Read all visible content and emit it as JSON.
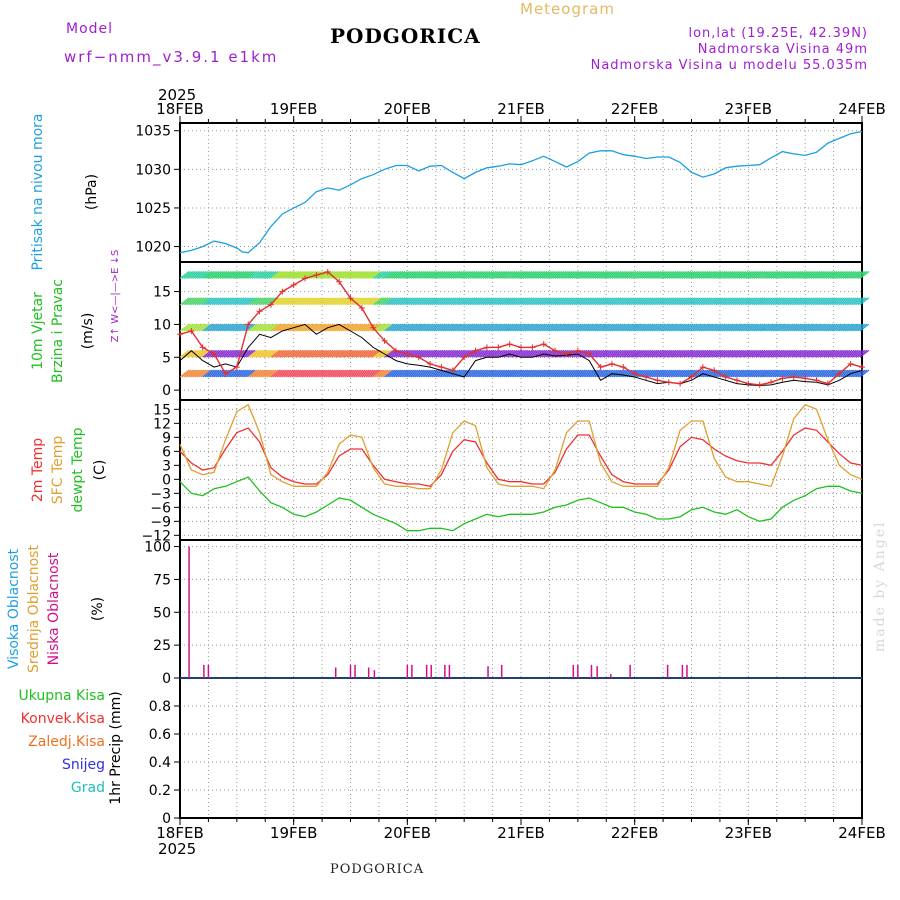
{
  "header": {
    "model_label": "Model",
    "model_value": "wrf−nmm_v3.9.1  e1km",
    "station": "PODGORICA",
    "title": "Meteogram",
    "lonlat": "lon,lat (19.25E, 42.39N)",
    "elevation": "Nadmorska Visina 49m",
    "model_elevation": "Nadmorska Visina u modelu 55.035m",
    "footer_station": "PODGORICA",
    "watermark": "made by Angel"
  },
  "colors": {
    "pressure": "#1aa0e0",
    "temp2m": "#f03030",
    "sfc_temp": "#e0a030",
    "dewpoint": "#20c020",
    "cloud_low": "#d0108a",
    "axis_title_pressure": "#20a0e0",
    "axis_title_wind": "#20c020",
    "compass": "#a020d0"
  },
  "chart_data": {
    "x_axis": {
      "top_year": "2025",
      "bottom_year": "2025",
      "ticks": [
        "18FEB",
        "19FEB",
        "20FEB",
        "21FEB",
        "22FEB",
        "23FEB",
        "24FEB"
      ],
      "range_days": [
        0,
        6
      ],
      "grid_step_hours": 6
    },
    "panels": [
      {
        "id": "pressure",
        "type": "line",
        "title": "Pritisak na nivou mora",
        "unit": "(hPa)",
        "ylim": [
          1018,
          1036
        ],
        "yticks": [
          1020,
          1025,
          1030,
          1035
        ],
        "series": [
          {
            "key": "pressure",
            "x": [
              0,
              0.1,
              0.2,
              0.3,
              0.4,
              0.5,
              0.55,
              0.6,
              0.7,
              0.8,
              0.9,
              1.0,
              1.1,
              1.2,
              1.3,
              1.4,
              1.5,
              1.6,
              1.7,
              1.8,
              1.9,
              2.0,
              2.1,
              2.2,
              2.3,
              2.4,
              2.5,
              2.6,
              2.7,
              2.8,
              2.9,
              3.0,
              3.1,
              3.2,
              3.3,
              3.4,
              3.5,
              3.6,
              3.7,
              3.8,
              3.9,
              4.0,
              4.1,
              4.2,
              4.3,
              4.4,
              4.5,
              4.6,
              4.7,
              4.8,
              4.9,
              5.0,
              5.1,
              5.2,
              5.3,
              5.4,
              5.5,
              5.6,
              5.7,
              5.8,
              5.9,
              6.0
            ],
            "values": [
              1019.2,
              1019.5,
              1020.0,
              1020.7,
              1020.4,
              1019.8,
              1019.3,
              1019.2,
              1020.5,
              1022.6,
              1024.2,
              1025.0,
              1025.7,
              1027.1,
              1027.6,
              1027.3,
              1028.0,
              1028.8,
              1029.3,
              1030.0,
              1030.5,
              1030.5,
              1029.8,
              1030.4,
              1030.5,
              1029.6,
              1028.8,
              1029.6,
              1030.2,
              1030.4,
              1030.7,
              1030.6,
              1031.1,
              1031.7,
              1031.0,
              1030.3,
              1031.0,
              1032.1,
              1032.4,
              1032.4,
              1031.9,
              1031.7,
              1031.4,
              1031.6,
              1031.6,
              1030.9,
              1029.6,
              1029.0,
              1029.4,
              1030.2,
              1030.4,
              1030.5,
              1030.6,
              1031.5,
              1032.3,
              1032.0,
              1031.8,
              1032.2,
              1033.4,
              1034.0,
              1034.6,
              1034.9
            ]
          }
        ]
      },
      {
        "id": "wind",
        "type": "line",
        "title_lines": [
          "10m Vjetar",
          "Brzina i Pravac"
        ],
        "unit": "(m/s)",
        "compass_label": "Z↑ W<—|—>E ↓S",
        "ylim": [
          -1.5,
          19.5
        ],
        "yticks": [
          0,
          5,
          10,
          15
        ],
        "series": [
          {
            "key": "mean_speed",
            "x": [
              0,
              0.1,
              0.2,
              0.3,
              0.4,
              0.5,
              0.6,
              0.7,
              0.8,
              0.9,
              1.0,
              1.1,
              1.2,
              1.3,
              1.4,
              1.5,
              1.6,
              1.7,
              1.8,
              1.9,
              2.0,
              2.1,
              2.2,
              2.3,
              2.4,
              2.5,
              2.6,
              2.7,
              2.8,
              2.9,
              3.0,
              3.1,
              3.2,
              3.3,
              3.4,
              3.5,
              3.6,
              3.7,
              3.8,
              3.9,
              4.0,
              4.1,
              4.2,
              4.3,
              4.4,
              4.5,
              4.6,
              4.7,
              4.8,
              4.9,
              5.0,
              5.1,
              5.2,
              5.3,
              5.4,
              5.5,
              5.6,
              5.7,
              5.8,
              5.9,
              6.0
            ],
            "values": [
              4.5,
              6.0,
              4.5,
              3.5,
              4.0,
              3.5,
              6.5,
              8.5,
              8.0,
              9.0,
              9.5,
              10.0,
              8.5,
              9.5,
              10.0,
              9.0,
              8.0,
              6.5,
              5.5,
              4.5,
              4.0,
              3.8,
              3.5,
              3.0,
              2.5,
              2.0,
              4.5,
              5.0,
              5.0,
              5.5,
              5.0,
              5.0,
              5.5,
              5.2,
              5.3,
              5.5,
              4.5,
              1.5,
              2.5,
              2.3,
              2.0,
              1.5,
              1.0,
              1.2,
              1.0,
              1.5,
              2.5,
              2.0,
              1.5,
              1.0,
              0.8,
              0.7,
              0.8,
              1.2,
              1.5,
              1.3,
              1.2,
              0.8,
              1.5,
              2.5,
              3.0
            ]
          },
          {
            "key": "gust_speed",
            "x": [
              0,
              0.1,
              0.2,
              0.3,
              0.4,
              0.5,
              0.6,
              0.7,
              0.8,
              0.9,
              1.0,
              1.1,
              1.2,
              1.3,
              1.4,
              1.5,
              1.6,
              1.7,
              1.8,
              1.9,
              2.0,
              2.1,
              2.2,
              2.3,
              2.4,
              2.5,
              2.6,
              2.7,
              2.8,
              2.9,
              3.0,
              3.1,
              3.2,
              3.3,
              3.4,
              3.5,
              3.6,
              3.7,
              3.8,
              3.9,
              4.0,
              4.1,
              4.2,
              4.3,
              4.4,
              4.5,
              4.6,
              4.7,
              4.8,
              4.9,
              5.0,
              5.1,
              5.2,
              5.3,
              5.4,
              5.5,
              5.6,
              5.7,
              5.8,
              5.9,
              6.0
            ],
            "values": [
              8.5,
              9.0,
              6.5,
              5.5,
              2.5,
              3.5,
              10.0,
              12.0,
              13.0,
              15.0,
              16.0,
              17.0,
              17.5,
              18.0,
              16.5,
              14.0,
              12.5,
              9.5,
              7.5,
              6.0,
              5.5,
              5.0,
              4.0,
              3.5,
              3.0,
              5.0,
              6.0,
              6.5,
              6.5,
              7.0,
              6.5,
              6.5,
              7.0,
              6.0,
              5.5,
              6.0,
              5.5,
              3.5,
              4.0,
              3.5,
              2.5,
              2.0,
              1.5,
              1.2,
              1.0,
              2.0,
              3.5,
              3.0,
              2.0,
              1.5,
              1.0,
              0.8,
              1.2,
              1.8,
              2.0,
              1.8,
              1.5,
              1.0,
              2.5,
              4.0,
              3.5
            ]
          }
        ]
      },
      {
        "id": "temperature",
        "type": "line",
        "title_lines": [
          "2m Temp",
          "SFC Temp",
          "dewpt Temp"
        ],
        "unit": "(C)",
        "ylim": [
          -13,
          17
        ],
        "yticks": [
          -12,
          -9,
          -6,
          -3,
          0,
          3,
          6,
          9,
          12,
          15
        ],
        "series": [
          {
            "key": "temp2m",
            "x": [
              0,
              0.1,
              0.2,
              0.3,
              0.4,
              0.5,
              0.6,
              0.7,
              0.8,
              0.9,
              1.0,
              1.1,
              1.2,
              1.3,
              1.4,
              1.5,
              1.6,
              1.7,
              1.8,
              1.9,
              2.0,
              2.1,
              2.2,
              2.3,
              2.4,
              2.5,
              2.6,
              2.7,
              2.8,
              2.9,
              3.0,
              3.1,
              3.2,
              3.3,
              3.4,
              3.5,
              3.6,
              3.7,
              3.8,
              3.9,
              4.0,
              4.1,
              4.2,
              4.3,
              4.4,
              4.5,
              4.6,
              4.7,
              4.8,
              4.9,
              5.0,
              5.1,
              5.2,
              5.3,
              5.4,
              5.5,
              5.6,
              5.7,
              5.8,
              5.9,
              6.0
            ],
            "values": [
              6.0,
              3.5,
              2.0,
              2.5,
              6.5,
              10.0,
              11.0,
              8.0,
              2.5,
              0.5,
              -0.5,
              -1.0,
              -1.0,
              1.0,
              5.0,
              6.5,
              6.5,
              3.0,
              0.0,
              -0.5,
              -1.0,
              -1.0,
              -1.5,
              1.0,
              6.0,
              8.5,
              8.0,
              3.5,
              0.0,
              -0.5,
              -0.5,
              -1.0,
              -1.0,
              1.5,
              6.5,
              9.5,
              9.5,
              5.0,
              1.0,
              -0.5,
              -1.0,
              -1.0,
              -1.0,
              2.0,
              7.0,
              9.0,
              8.5,
              6.5,
              5.0,
              4.0,
              3.5,
              3.5,
              3.0,
              6.0,
              9.5,
              11.0,
              10.5,
              8.0,
              5.5,
              3.5,
              3.0
            ]
          },
          {
            "key": "sfc_temp",
            "x": [
              0,
              0.1,
              0.2,
              0.3,
              0.4,
              0.5,
              0.6,
              0.7,
              0.8,
              0.9,
              1.0,
              1.1,
              1.2,
              1.3,
              1.4,
              1.5,
              1.6,
              1.7,
              1.8,
              1.9,
              2.0,
              2.1,
              2.2,
              2.3,
              2.4,
              2.5,
              2.6,
              2.7,
              2.8,
              2.9,
              3.0,
              3.1,
              3.2,
              3.3,
              3.4,
              3.5,
              3.6,
              3.7,
              3.8,
              3.9,
              4.0,
              4.1,
              4.2,
              4.3,
              4.4,
              4.5,
              4.6,
              4.7,
              4.8,
              4.9,
              5.0,
              5.1,
              5.2,
              5.3,
              5.4,
              5.5,
              5.6,
              5.7,
              5.8,
              5.9,
              6.0
            ],
            "values": [
              7.5,
              2.0,
              1.0,
              1.5,
              8.5,
              14.5,
              16.0,
              10.0,
              1.0,
              -0.5,
              -1.5,
              -1.5,
              -1.5,
              1.5,
              7.5,
              9.5,
              9.0,
              2.5,
              -1.0,
              -1.5,
              -1.5,
              -2.0,
              -2.0,
              2.0,
              10.0,
              12.5,
              11.5,
              2.5,
              -1.0,
              -1.5,
              -1.5,
              -1.5,
              -2.0,
              2.0,
              10.0,
              12.5,
              12.5,
              3.5,
              -0.5,
              -1.5,
              -1.5,
              -1.5,
              -1.5,
              2.5,
              10.5,
              12.5,
              12.5,
              4.5,
              0.5,
              -0.5,
              -0.5,
              -1.0,
              -1.5,
              5.0,
              13.0,
              16.0,
              15.0,
              8.5,
              3.0,
              1.0,
              0.0
            ]
          },
          {
            "key": "dewpoint",
            "x": [
              0,
              0.1,
              0.2,
              0.3,
              0.4,
              0.5,
              0.6,
              0.7,
              0.8,
              0.9,
              1.0,
              1.1,
              1.2,
              1.3,
              1.4,
              1.5,
              1.6,
              1.7,
              1.8,
              1.9,
              2.0,
              2.1,
              2.2,
              2.3,
              2.4,
              2.5,
              2.6,
              2.7,
              2.8,
              2.9,
              3.0,
              3.1,
              3.2,
              3.3,
              3.4,
              3.5,
              3.6,
              3.7,
              3.8,
              3.9,
              4.0,
              4.1,
              4.2,
              4.3,
              4.4,
              4.5,
              4.6,
              4.7,
              4.8,
              4.9,
              5.0,
              5.1,
              5.2,
              5.3,
              5.4,
              5.5,
              5.6,
              5.7,
              5.8,
              5.9,
              6.0
            ],
            "values": [
              -0.5,
              -3.0,
              -3.5,
              -2.0,
              -1.5,
              -0.5,
              0.5,
              -2.5,
              -5.0,
              -6.0,
              -7.5,
              -8.0,
              -7.0,
              -5.5,
              -4.0,
              -4.5,
              -6.0,
              -7.5,
              -8.5,
              -9.5,
              -11.0,
              -11.0,
              -10.5,
              -10.5,
              -11.0,
              -9.5,
              -8.5,
              -7.5,
              -8.0,
              -7.5,
              -7.5,
              -7.5,
              -7.0,
              -6.0,
              -5.5,
              -4.5,
              -4.0,
              -5.0,
              -6.0,
              -6.0,
              -7.0,
              -7.5,
              -8.5,
              -8.5,
              -8.0,
              -6.5,
              -6.0,
              -7.0,
              -7.5,
              -6.5,
              -8.0,
              -9.0,
              -8.5,
              -6.0,
              -4.5,
              -3.5,
              -2.0,
              -1.5,
              -1.5,
              -2.5,
              -3.0
            ]
          }
        ]
      },
      {
        "id": "cloud",
        "type": "bar",
        "title_lines": [
          "Visoka Oblacnost",
          "Srednja Oblacnost",
          "Niska Oblacnost"
        ],
        "unit": "(%)",
        "ylim": [
          0,
          105
        ],
        "yticks": [
          0,
          25,
          50,
          75,
          100
        ],
        "series": [
          {
            "key": "low_cloud",
            "x": [
              0.08,
              0.21,
              0.25,
              1.37,
              1.5,
              1.54,
              1.66,
              1.71,
              2.0,
              2.04,
              2.17,
              2.21,
              2.33,
              2.37,
              2.71,
              2.83,
              3.46,
              3.5,
              3.62,
              3.67,
              3.79,
              3.96,
              4.29,
              4.42,
              4.46
            ],
            "values": [
              100,
              10,
              10,
              8,
              10,
              10,
              8,
              6,
              10,
              10,
              10,
              10,
              10,
              10,
              9,
              10,
              10,
              10,
              10,
              9,
              3,
              10,
              10,
              10,
              10
            ]
          }
        ]
      },
      {
        "id": "precip",
        "type": "line",
        "title_lines": [
          "Ukupna Kisa",
          "Konvek.Kisa",
          "Zaledj.Kisa",
          "Snijeg",
          "Grad"
        ],
        "unit": "1hr Precip (mm)",
        "ylim": [
          0,
          1
        ],
        "yticks": [
          0,
          0.2,
          0.4,
          0.6,
          0.8
        ],
        "ytick_labels": [
          "0",
          "0.2",
          "0.4",
          "0.6",
          "0.8"
        ],
        "series": []
      }
    ]
  }
}
